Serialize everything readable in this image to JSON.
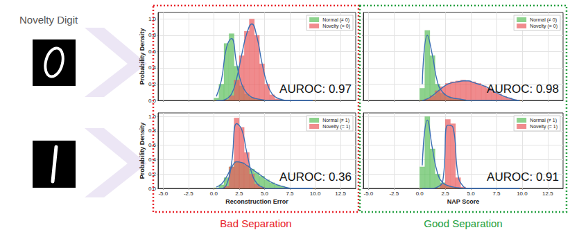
{
  "heading": "Novelty Digit",
  "groups": [
    {
      "label": "Bad Separation",
      "color": "#e8232a"
    },
    {
      "label": "Good Separation",
      "color": "#23a040"
    }
  ],
  "chart_data": [
    {
      "type": "histogram",
      "y_label": "Probability Density",
      "annotation": "AUROC: 0.97",
      "legend": "upper right",
      "grid": true,
      "tick_labels": "y",
      "xlim": [
        -5.5,
        14
      ],
      "ylim": [
        0,
        1.08
      ],
      "xticks": [
        {
          "value": -5,
          "label": "-5.0"
        },
        -2.5,
        {
          "value": 0,
          "label": "0.0"
        },
        2.5,
        {
          "value": 5,
          "label": "5.0"
        },
        7.5,
        {
          "value": 10,
          "label": "10.0"
        },
        12.5
      ],
      "yticks": [
        {
          "value": 0,
          "label": "0.0"
        },
        0.2,
        0.4,
        0.6,
        0.8,
        {
          "value": 1,
          "label": "1.0"
        }
      ],
      "bins": [
        0,
        0.5,
        1,
        1.5,
        2,
        2.5,
        3,
        3.5,
        4,
        4.5,
        5,
        5.5,
        6,
        6.5,
        7,
        7.5,
        8,
        8.5,
        9,
        9.5,
        10
      ],
      "series": [
        {
          "name": "Normal (≠ 0)",
          "type": "histogram",
          "color": "#5cbf5c",
          "values": [
            0.03,
            0.2,
            0.7,
            0.82,
            0.42,
            0.18,
            0.08,
            0.04,
            0.02,
            0.01,
            0,
            0,
            0,
            0,
            0,
            0,
            0,
            0,
            0,
            0
          ]
        },
        {
          "name": "Novelty (= 0)",
          "type": "histogram",
          "color": "#ea5a5c",
          "values": [
            0,
            0,
            0.01,
            0.06,
            0.25,
            0.55,
            0.85,
            1.0,
            0.8,
            0.45,
            0.2,
            0.07,
            0.02,
            0,
            0,
            0,
            0,
            0,
            0,
            0
          ]
        },
        {
          "type": "line",
          "color": "#3c6fb4",
          "x": [
            0.25,
            0.75,
            1.25,
            1.75,
            2.25,
            2.75,
            3.25,
            3.75,
            4.25,
            4.75,
            5.25,
            5.75,
            6.25,
            6.75,
            7.25,
            7.75,
            8.25,
            8.75,
            9.25,
            9.75
          ],
          "values": [
            0.05,
            0.25,
            0.65,
            0.76,
            0.45,
            0.2,
            0.09,
            0.04,
            0.02,
            0.01,
            0,
            0,
            0,
            0,
            0,
            0,
            0,
            0,
            0,
            0
          ]
        },
        {
          "type": "line",
          "color": "#3c6fb4",
          "x": [
            0.25,
            0.75,
            1.25,
            1.75,
            2.25,
            2.75,
            3.25,
            3.75,
            4.25,
            4.75,
            5.25,
            5.75,
            6.25,
            6.75,
            7.25,
            7.75,
            8.25,
            8.75,
            9.25,
            9.75
          ],
          "values": [
            0,
            0,
            0.02,
            0.08,
            0.27,
            0.56,
            0.82,
            0.94,
            0.78,
            0.46,
            0.21,
            0.08,
            0.03,
            0.01,
            0,
            0,
            0,
            0,
            0,
            0
          ]
        }
      ]
    },
    {
      "type": "histogram",
      "annotation": "AUROC: 0.98",
      "legend": "upper right",
      "grid": true,
      "tick_labels": false,
      "xlim": [
        -5.5,
        14
      ],
      "ylim": [
        0,
        1.08
      ],
      "xticks": [
        {
          "value": -5,
          "label": "-5.0"
        },
        -2.5,
        {
          "value": 0,
          "label": "0.0"
        },
        2.5,
        {
          "value": 5,
          "label": "5.0"
        },
        7.5,
        {
          "value": 10,
          "label": "10.0"
        },
        12.5
      ],
      "yticks": [
        {
          "value": 0,
          "label": "0.0"
        },
        0.2,
        0.4,
        0.6,
        0.8,
        {
          "value": 1,
          "label": "1.0"
        }
      ],
      "bins": [
        0,
        0.5,
        1,
        1.5,
        2,
        2.5,
        3,
        3.5,
        4,
        4.5,
        5,
        5.5,
        6,
        6.5,
        7,
        7.5,
        8,
        8.5,
        9,
        9.5,
        10
      ],
      "series": [
        {
          "name": "Normal (≠ 0)",
          "type": "histogram",
          "color": "#5cbf5c",
          "values": [
            0.15,
            0.86,
            0.55,
            0.2,
            0.09,
            0.05,
            0.03,
            0.02,
            0.01,
            0,
            0,
            0,
            0,
            0,
            0,
            0,
            0,
            0,
            0,
            0
          ]
        },
        {
          "name": "Novelty (= 0)",
          "type": "histogram",
          "color": "#ea5a5c",
          "values": [
            0,
            0.02,
            0.06,
            0.12,
            0.17,
            0.21,
            0.23,
            0.24,
            0.25,
            0.24,
            0.23,
            0.21,
            0.18,
            0.15,
            0.11,
            0.08,
            0.05,
            0.03,
            0.01,
            0
          ]
        },
        {
          "type": "line",
          "color": "#3c6fb4",
          "x": [
            0.25,
            0.75,
            1.25,
            1.75,
            2.25,
            2.75,
            3.25,
            3.75,
            4.25,
            4.75,
            5.25,
            5.75,
            6.25,
            6.75,
            7.25,
            7.75,
            8.25,
            8.75,
            9.25,
            9.75
          ],
          "values": [
            0.2,
            0.8,
            0.55,
            0.22,
            0.1,
            0.05,
            0.03,
            0.02,
            0.01,
            0,
            0,
            0,
            0,
            0,
            0,
            0,
            0,
            0,
            0,
            0
          ]
        },
        {
          "type": "line",
          "color": "#3c6fb4",
          "x": [
            0.25,
            0.75,
            1.25,
            1.75,
            2.25,
            2.75,
            3.25,
            3.75,
            4.25,
            4.75,
            5.25,
            5.75,
            6.25,
            6.75,
            7.25,
            7.75,
            8.25,
            8.75,
            9.25,
            9.75
          ],
          "values": [
            0,
            0.02,
            0.06,
            0.11,
            0.16,
            0.2,
            0.22,
            0.23,
            0.24,
            0.24,
            0.22,
            0.2,
            0.18,
            0.15,
            0.11,
            0.08,
            0.05,
            0.03,
            0.01,
            0
          ]
        }
      ]
    },
    {
      "type": "histogram",
      "x_label": "Reconstruction Error",
      "y_label": "Probability Density",
      "annotation": "AUROC: 0.36",
      "legend": "upper right",
      "grid": true,
      "xlim": [
        -5.5,
        14
      ],
      "ylim": [
        0,
        1.05
      ],
      "xticks": [
        {
          "value": -5,
          "label": "-5.0"
        },
        -2.5,
        {
          "value": 0,
          "label": "0.0"
        },
        2.5,
        {
          "value": 5,
          "label": "5.0"
        },
        7.5,
        {
          "value": 10,
          "label": "10.0"
        },
        12.5
      ],
      "yticks": [
        {
          "value": 0,
          "label": "0.0"
        },
        0.2,
        0.4,
        0.6,
        0.8,
        {
          "value": 1,
          "label": "1.0"
        }
      ],
      "bins": [
        0,
        0.5,
        1,
        1.5,
        2,
        2.5,
        3,
        3.5,
        4,
        4.5,
        5,
        5.5,
        6,
        6.5,
        7,
        7.5,
        8,
        8.5,
        9,
        9.5,
        10
      ],
      "series": [
        {
          "name": "Normal (≠ 1)",
          "type": "histogram",
          "color": "#5cbf5c",
          "values": [
            0.01,
            0.05,
            0.15,
            0.3,
            0.38,
            0.36,
            0.32,
            0.27,
            0.22,
            0.17,
            0.12,
            0.08,
            0.05,
            0.03,
            0.01,
            0,
            0,
            0,
            0,
            0
          ]
        },
        {
          "name": "Novelty (= 1)",
          "type": "histogram",
          "color": "#ea5a5c",
          "values": [
            0,
            0,
            0.03,
            0.3,
            0.98,
            0.85,
            0.5,
            0.2,
            0.06,
            0.02,
            0,
            0,
            0,
            0,
            0,
            0,
            0,
            0,
            0,
            0
          ]
        },
        {
          "type": "line",
          "color": "#3c6fb4",
          "x": [
            0.25,
            0.75,
            1.25,
            1.75,
            2.25,
            2.75,
            3.25,
            3.75,
            4.25,
            4.75,
            5.25,
            5.75,
            6.25,
            6.75,
            7.25,
            7.75,
            8.25,
            8.75,
            9.25,
            9.75
          ],
          "values": [
            0.02,
            0.06,
            0.16,
            0.29,
            0.37,
            0.36,
            0.32,
            0.27,
            0.22,
            0.17,
            0.12,
            0.08,
            0.05,
            0.03,
            0.01,
            0,
            0,
            0,
            0,
            0
          ]
        },
        {
          "type": "line",
          "color": "#3c6fb4",
          "x": [
            0.25,
            0.75,
            1.25,
            1.75,
            2.25,
            2.75,
            3.25,
            3.75,
            4.25,
            4.75,
            5.25,
            5.75,
            6.25,
            6.75,
            7.25,
            7.75,
            8.25,
            8.75,
            9.25,
            9.75
          ],
          "values": [
            0,
            0,
            0.05,
            0.35,
            0.9,
            0.82,
            0.5,
            0.21,
            0.07,
            0.02,
            0,
            0,
            0,
            0,
            0,
            0,
            0,
            0,
            0,
            0
          ]
        }
      ]
    },
    {
      "type": "histogram",
      "x_label": "NAP Score",
      "annotation": "AUROC: 0.91",
      "legend": "upper right",
      "grid": true,
      "tick_labels": "x",
      "xlim": [
        -5.5,
        14
      ],
      "ylim": [
        0,
        1.05
      ],
      "xticks": [
        {
          "value": -5,
          "label": "-5.0"
        },
        -2.5,
        {
          "value": 0,
          "label": "0.0"
        },
        2.5,
        {
          "value": 5,
          "label": "5.0"
        },
        7.5,
        {
          "value": 10,
          "label": "10.0"
        },
        12.5
      ],
      "yticks": [
        {
          "value": 0,
          "label": "0.0"
        },
        0.2,
        0.4,
        0.6,
        0.8,
        {
          "value": 1,
          "label": "1.0"
        }
      ],
      "bins": [
        0,
        0.5,
        1,
        1.5,
        2,
        2.5,
        3,
        3.5,
        4,
        4.5,
        5,
        5.5,
        6,
        6.5,
        7,
        7.5,
        8,
        8.5,
        9,
        9.5,
        10
      ],
      "series": [
        {
          "name": "Normal (≠ 1)",
          "type": "histogram",
          "color": "#5cbf5c",
          "values": [
            0.3,
            1.0,
            0.55,
            0.2,
            0.08,
            0.04,
            0.02,
            0.01,
            0,
            0,
            0,
            0,
            0,
            0,
            0,
            0,
            0,
            0,
            0,
            0
          ]
        },
        {
          "name": "Novelty (= 1)",
          "type": "histogram",
          "color": "#ea5a5c",
          "values": [
            0,
            0,
            0,
            0.01,
            0.06,
            0.96,
            0.9,
            0.15,
            0.02,
            0,
            0,
            0,
            0,
            0,
            0,
            0,
            0,
            0,
            0,
            0
          ]
        },
        {
          "type": "line",
          "color": "#3c6fb4",
          "x": [
            0.25,
            0.75,
            1.25,
            1.75,
            2.25,
            2.75,
            3.25,
            3.75,
            4.25,
            4.75,
            5.25,
            5.75,
            6.25,
            6.75,
            7.25,
            7.75,
            8.25,
            8.75,
            9.25,
            9.75
          ],
          "values": [
            0.32,
            0.95,
            0.55,
            0.21,
            0.08,
            0.04,
            0.02,
            0.01,
            0,
            0,
            0,
            0,
            0,
            0,
            0,
            0,
            0,
            0,
            0,
            0
          ]
        },
        {
          "type": "line",
          "color": "#3c6fb4",
          "x": [
            0.25,
            0.75,
            1.25,
            1.75,
            2.25,
            2.75,
            3.25,
            3.75,
            4.25,
            4.75,
            5.25,
            5.75,
            6.25,
            6.75,
            7.25,
            7.75,
            8.25,
            8.75,
            9.25,
            9.75
          ],
          "values": [
            0,
            0,
            0,
            0.02,
            0.1,
            0.88,
            0.85,
            0.18,
            0.03,
            0,
            0,
            0,
            0,
            0,
            0,
            0,
            0,
            0,
            0,
            0
          ]
        }
      ]
    }
  ]
}
